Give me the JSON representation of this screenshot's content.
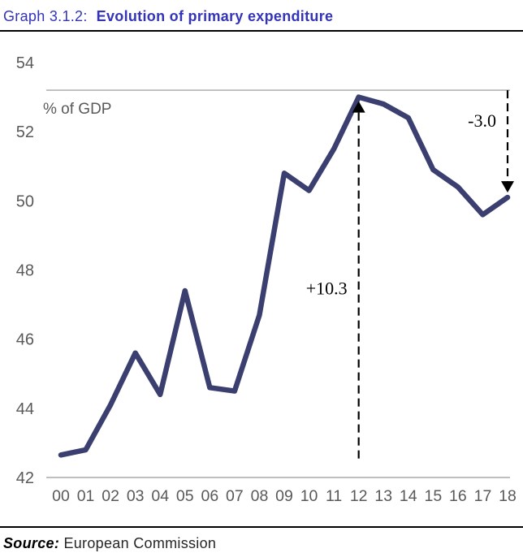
{
  "header": {
    "graph_label": "Graph 3.1.2:",
    "title": "Evolution of primary expenditure",
    "accent_color": "#3434b8"
  },
  "chart_data": {
    "type": "line",
    "title": "Evolution of primary expenditure",
    "unit_label": "% of GDP",
    "x_tick_labels": [
      "00",
      "01",
      "02",
      "03",
      "04",
      "05",
      "06",
      "07",
      "08",
      "09",
      "10",
      "11",
      "12",
      "13",
      "14",
      "15",
      "16",
      "17",
      "18"
    ],
    "y_ticks": [
      54,
      52,
      50,
      48,
      46,
      44,
      42
    ],
    "ylim": [
      42,
      54
    ],
    "grid": "single horizontal reference line at 2012 peak level, plus baseline",
    "legend": "none",
    "reference_line_value": 53.2,
    "series": [
      {
        "name": "Primary expenditure (% of GDP)",
        "color": "#3a3f70",
        "values": [
          42.65,
          42.8,
          44.1,
          45.6,
          44.4,
          47.4,
          44.6,
          44.5,
          46.7,
          50.8,
          50.3,
          51.5,
          53.0,
          52.8,
          52.4,
          50.9,
          50.4,
          49.6,
          50.1
        ]
      }
    ],
    "annotations": [
      {
        "text": "+10.3",
        "year_index": 12,
        "direction": "up",
        "from_value": 42.55,
        "to_value": 53.0,
        "label_at_value": 47.3
      },
      {
        "text": "-3.0",
        "year_index": 18,
        "direction": "down",
        "from_value": 53.2,
        "to_value": 50.1,
        "label_at_value": 52.15
      }
    ]
  },
  "footer": {
    "source_label": "Source:",
    "source_text": "European Commission"
  }
}
